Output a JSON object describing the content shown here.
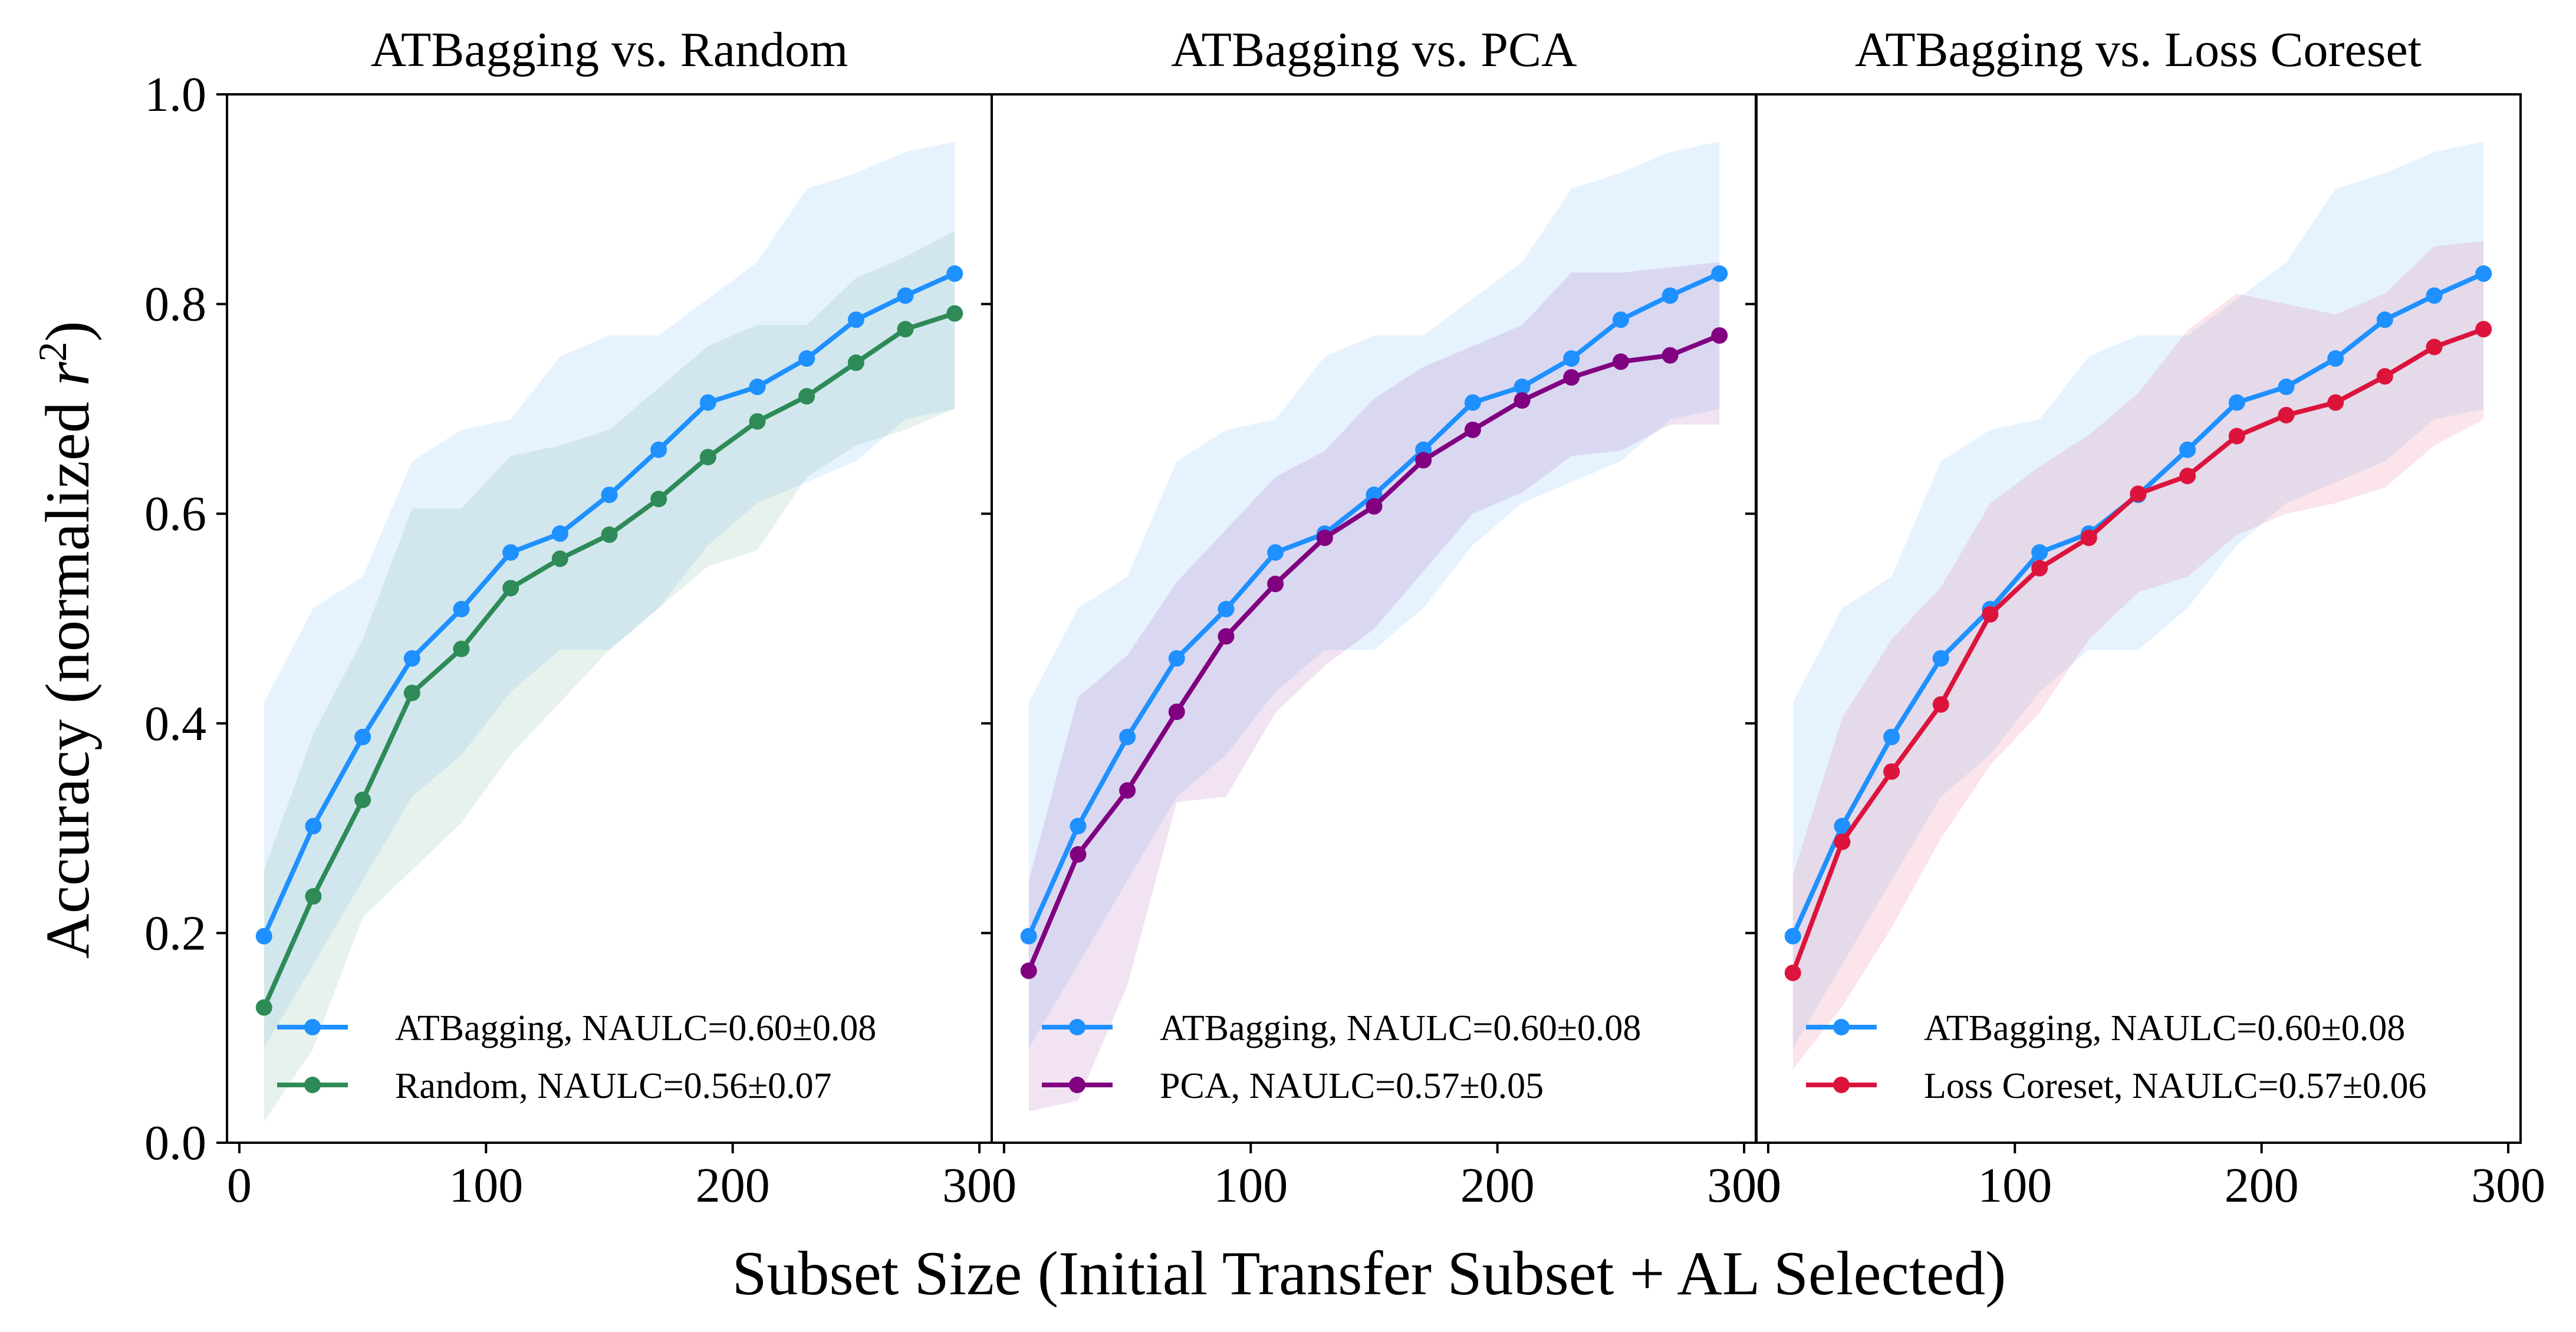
{
  "chart_data": {
    "type": "line",
    "xlabel": "Subset Size (Initial Transfer Subset + AL Selected)",
    "ylabel": "Accuracy (normalized r²)",
    "ylabel_main": "Accuracy (normalized ",
    "ylabel_var": "r",
    "ylabel_sup": "2",
    "ylabel_end": ")",
    "xlim": [
      -5,
      305
    ],
    "ylim": [
      0.0,
      1.0
    ],
    "xticks": [
      0,
      100,
      200,
      300
    ],
    "xtick_labels": [
      "0",
      "100",
      "200",
      "300"
    ],
    "yticks": [
      0.0,
      0.2,
      0.4,
      0.6,
      0.8,
      1.0
    ],
    "ytick_labels": [
      "0.0",
      "0.2",
      "0.4",
      "0.6",
      "0.8",
      "1.0"
    ],
    "x": [
      10,
      30,
      50,
      70,
      90,
      110,
      130,
      150,
      170,
      190,
      210,
      230,
      250,
      270,
      290
    ],
    "legend_position": "lower-right",
    "panels": [
      {
        "title": "ATBagging vs. Random",
        "series": [
          {
            "name": "ATBagging, NAULC=0.60±0.08",
            "color": "#1e90ff",
            "values": [
              0.197,
              0.302,
              0.387,
              0.462,
              0.509,
              0.563,
              0.581,
              0.618,
              0.661,
              0.706,
              0.721,
              0.748,
              0.785,
              0.808,
              0.829
            ],
            "upper": [
              0.42,
              0.51,
              0.54,
              0.65,
              0.68,
              0.69,
              0.75,
              0.77,
              0.77,
              0.805,
              0.84,
              0.91,
              0.925,
              0.945,
              0.955
            ],
            "lower": [
              0.09,
              0.17,
              0.25,
              0.33,
              0.37,
              0.43,
              0.47,
              0.47,
              0.51,
              0.57,
              0.61,
              0.63,
              0.65,
              0.69,
              0.7
            ]
          },
          {
            "name": "Random, NAULC=0.56±0.07",
            "color": "#2e8b57",
            "values": [
              0.129,
              0.235,
              0.327,
              0.429,
              0.471,
              0.529,
              0.557,
              0.58,
              0.614,
              0.654,
              0.688,
              0.712,
              0.744,
              0.776,
              0.791
            ],
            "upper": [
              0.26,
              0.39,
              0.48,
              0.605,
              0.605,
              0.655,
              0.665,
              0.68,
              0.72,
              0.76,
              0.78,
              0.78,
              0.825,
              0.845,
              0.87
            ],
            "lower": [
              0.02,
              0.09,
              0.215,
              0.26,
              0.305,
              0.37,
              0.42,
              0.47,
              0.51,
              0.55,
              0.565,
              0.635,
              0.665,
              0.68,
              0.7
            ]
          }
        ]
      },
      {
        "title": "ATBagging vs. PCA",
        "series": [
          {
            "name": "ATBagging, NAULC=0.60±0.08",
            "color": "#1e90ff",
            "values": [
              0.197,
              0.302,
              0.387,
              0.462,
              0.509,
              0.563,
              0.581,
              0.618,
              0.661,
              0.706,
              0.721,
              0.748,
              0.785,
              0.808,
              0.829
            ],
            "upper": [
              0.42,
              0.51,
              0.54,
              0.65,
              0.68,
              0.69,
              0.75,
              0.77,
              0.77,
              0.805,
              0.84,
              0.91,
              0.925,
              0.945,
              0.955
            ],
            "lower": [
              0.09,
              0.17,
              0.25,
              0.33,
              0.37,
              0.43,
              0.47,
              0.47,
              0.51,
              0.57,
              0.61,
              0.63,
              0.65,
              0.69,
              0.7
            ]
          },
          {
            "name": "PCA, NAULC=0.57±0.05",
            "color": "#800080",
            "values": [
              0.164,
              0.275,
              0.336,
              0.411,
              0.483,
              0.533,
              0.577,
              0.607,
              0.651,
              0.68,
              0.708,
              0.73,
              0.745,
              0.751,
              0.77
            ],
            "upper": [
              0.25,
              0.425,
              0.465,
              0.535,
              0.585,
              0.635,
              0.66,
              0.71,
              0.74,
              0.76,
              0.78,
              0.83,
              0.83,
              0.835,
              0.84
            ],
            "lower": [
              0.03,
              0.04,
              0.15,
              0.325,
              0.33,
              0.41,
              0.455,
              0.49,
              0.545,
              0.6,
              0.62,
              0.655,
              0.66,
              0.685,
              0.685
            ]
          }
        ]
      },
      {
        "title": "ATBagging vs. Loss Coreset",
        "series": [
          {
            "name": "ATBagging, NAULC=0.60±0.08",
            "color": "#1e90ff",
            "values": [
              0.197,
              0.302,
              0.387,
              0.462,
              0.509,
              0.563,
              0.581,
              0.618,
              0.661,
              0.706,
              0.721,
              0.748,
              0.785,
              0.808,
              0.829
            ],
            "upper": [
              0.42,
              0.51,
              0.54,
              0.65,
              0.68,
              0.69,
              0.75,
              0.77,
              0.77,
              0.805,
              0.84,
              0.91,
              0.925,
              0.945,
              0.955
            ],
            "lower": [
              0.09,
              0.17,
              0.25,
              0.33,
              0.37,
              0.43,
              0.47,
              0.47,
              0.51,
              0.57,
              0.61,
              0.63,
              0.65,
              0.69,
              0.7
            ]
          },
          {
            "name": "Loss Coreset, NAULC=0.57±0.06",
            "color": "#dc143c",
            "values": [
              0.162,
              0.287,
              0.354,
              0.418,
              0.504,
              0.548,
              0.577,
              0.619,
              0.636,
              0.674,
              0.694,
              0.706,
              0.731,
              0.759,
              0.776
            ],
            "upper": [
              0.255,
              0.405,
              0.48,
              0.53,
              0.61,
              0.645,
              0.675,
              0.715,
              0.775,
              0.81,
              0.8,
              0.79,
              0.81,
              0.855,
              0.86
            ],
            "lower": [
              0.07,
              0.13,
              0.205,
              0.29,
              0.36,
              0.41,
              0.48,
              0.525,
              0.54,
              0.58,
              0.6,
              0.61,
              0.625,
              0.665,
              0.69
            ]
          }
        ]
      }
    ]
  }
}
